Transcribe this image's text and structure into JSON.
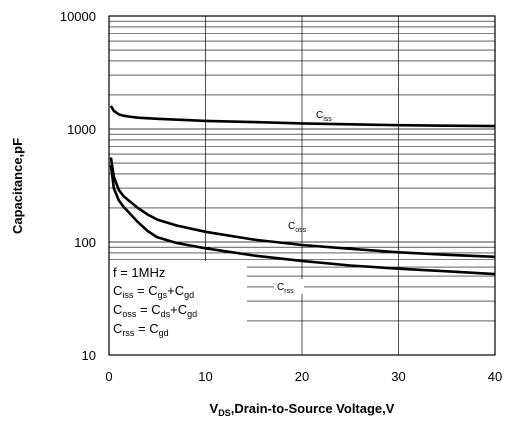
{
  "chart_data": {
    "type": "line",
    "title": "",
    "xlabel": "V",
    "xlabel_sub": "DS",
    "xlabel_rest": ",Drain-to-Source Voltage,V",
    "ylabel": "Capacitance,pF",
    "xlim": [
      0,
      40
    ],
    "ylim": [
      10,
      10000
    ],
    "yscale": "log",
    "grid": true,
    "x_ticks": [
      "0",
      "10",
      "20",
      "30",
      "40"
    ],
    "y_ticks": [
      "10",
      "100",
      "1000",
      "10000"
    ],
    "series": [
      {
        "name": "Ciss",
        "label_main": "C",
        "label_sub": "iss",
        "x": [
          0.2,
          0.5,
          1,
          1.5,
          2,
          3,
          5,
          8,
          10,
          15,
          20,
          25,
          30,
          35,
          40
        ],
        "y": [
          1600,
          1450,
          1350,
          1310,
          1290,
          1260,
          1230,
          1200,
          1180,
          1150,
          1120,
          1100,
          1080,
          1070,
          1060
        ]
      },
      {
        "name": "Coss",
        "label_main": "C",
        "label_sub": "oss",
        "x": [
          0.2,
          0.5,
          1,
          1.5,
          2,
          3,
          4,
          5,
          7,
          10,
          15,
          20,
          25,
          30,
          35,
          40
        ],
        "y": [
          560,
          380,
          290,
          255,
          235,
          200,
          175,
          158,
          140,
          123,
          105,
          94,
          87,
          81,
          77,
          74
        ]
      },
      {
        "name": "Crss",
        "label_main": "C",
        "label_sub": "rss",
        "x": [
          0.2,
          0.5,
          1,
          1.5,
          2,
          3,
          4,
          5,
          7,
          10,
          15,
          20,
          25,
          30,
          35,
          40
        ],
        "y": [
          480,
          300,
          235,
          205,
          185,
          150,
          125,
          110,
          98,
          88,
          76,
          68,
          62,
          58,
          55,
          52
        ]
      }
    ],
    "annotations": {
      "freq": "f = 1MHz",
      "eq": [
        {
          "l_main": "C",
          "l_sub": "iss",
          "mid": " = C",
          "a_sub": "gs",
          "plus": "+C",
          "b_sub": "gd"
        },
        {
          "l_main": "C",
          "l_sub": "oss",
          "mid": " = C",
          "a_sub": "ds",
          "plus": "+C",
          "b_sub": "gd"
        },
        {
          "l_main": "C",
          "l_sub": "rss",
          "mid": " = C",
          "a_sub": "gd",
          "plus": "",
          "b_sub": ""
        }
      ]
    },
    "colors": {
      "line": "#000000",
      "grid": "#000000",
      "background": "#ffffff"
    }
  }
}
